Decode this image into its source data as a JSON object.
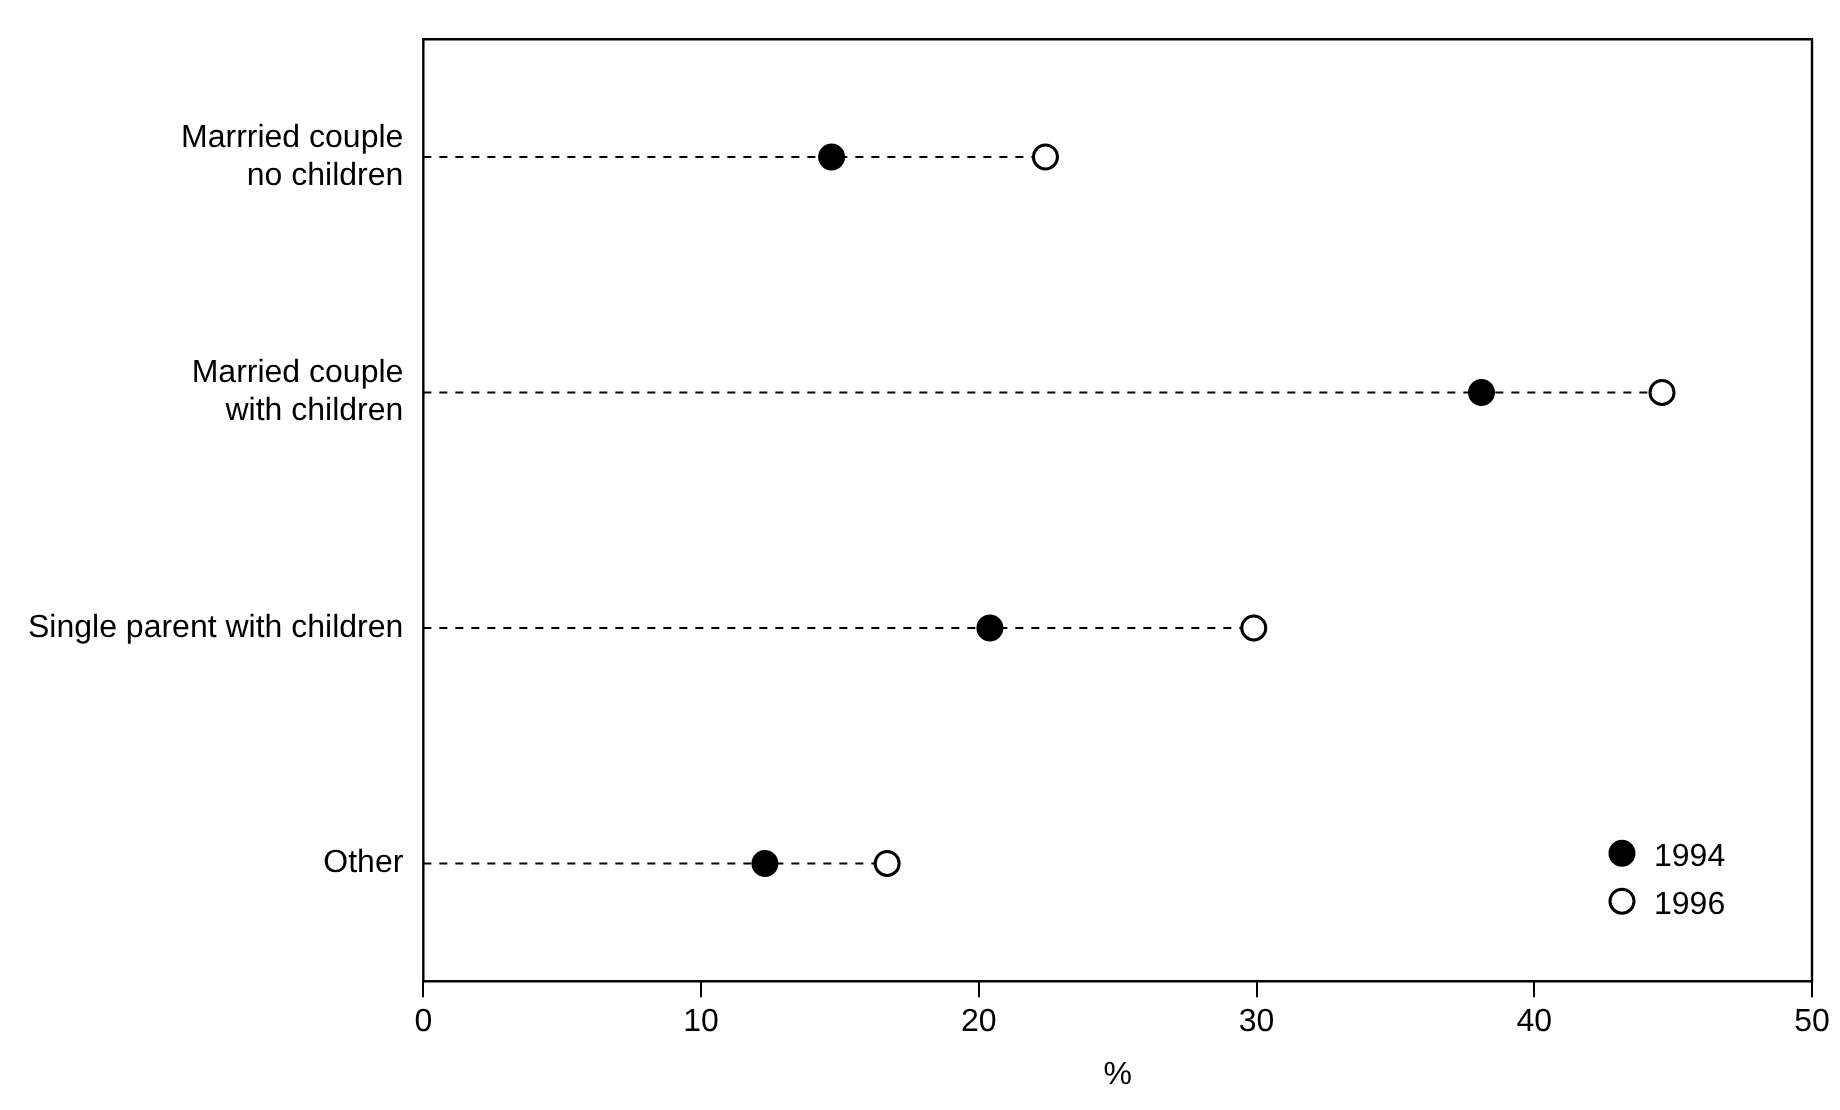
{
  "chart_data": {
    "type": "lollipop",
    "orientation": "horizontal",
    "xlabel": "%",
    "categories": [
      "Marrried couple\nno children",
      "Married couple\nwith children",
      "Single parent with children",
      "Other"
    ],
    "series": [
      {
        "name": "1994",
        "color": "#000000",
        "values": [
          14.7,
          38.1,
          20.4,
          12.3
        ]
      },
      {
        "name": "1996",
        "color": "#ffffff",
        "values": [
          22.4,
          44.6,
          29.9,
          16.7
        ]
      }
    ],
    "xlim": [
      0,
      50
    ],
    "xticks": [
      0,
      10,
      20,
      30,
      40,
      50
    ],
    "grid": false,
    "legend": "bottom right",
    "marker": "circle",
    "line_style": "dashed"
  }
}
